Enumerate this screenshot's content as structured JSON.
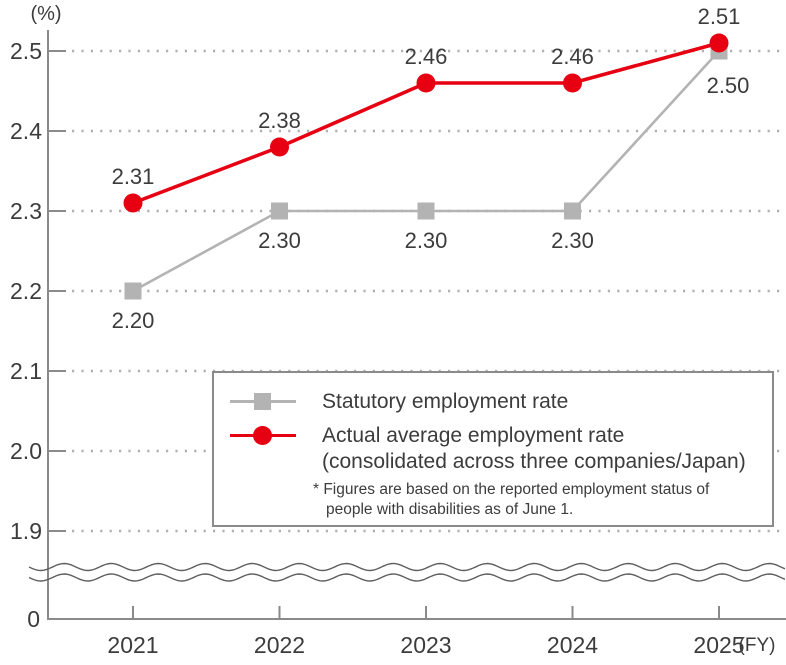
{
  "chart_data": {
    "type": "line",
    "categories": [
      "2021",
      "2022",
      "2023",
      "2024",
      "2025"
    ],
    "x_axis_unit": "(FY)",
    "y_axis_unit": "(%)",
    "series": [
      {
        "name": "Statutory employment rate",
        "marker": "square",
        "color": "#b3b3b3",
        "values": [
          2.2,
          2.3,
          2.3,
          2.3,
          2.5
        ],
        "point_labels": [
          "2.20",
          "2.30",
          "2.30",
          "2.30",
          "2.50"
        ],
        "label_position": "below"
      },
      {
        "name": "Actual average employment rate (consolidated across three companies/Japan)",
        "marker": "circle",
        "color": "#e60012",
        "values": [
          2.31,
          2.38,
          2.46,
          2.46,
          2.51
        ],
        "point_labels": [
          "2.31",
          "2.38",
          "2.46",
          "2.46",
          "2.51"
        ],
        "label_position": "above"
      }
    ],
    "y_tick_labels": [
      "2.5",
      "2.4",
      "2.3",
      "2.2",
      "2.1",
      "2.0",
      "1.9"
    ],
    "y_ticks": [
      2.5,
      2.4,
      2.3,
      2.2,
      2.1,
      2.0,
      1.9
    ],
    "origin_label": "0",
    "axis_break": true,
    "ylim_display": [
      1.9,
      2.5
    ],
    "grid": "dotted-horizontal",
    "legend_position": "inside-lower-right",
    "title": ""
  },
  "legend": {
    "items": [
      {
        "label": "Statutory employment rate",
        "marker": "square",
        "color": "#b3b3b3"
      },
      {
        "label_line1": "Actual average employment rate",
        "label_line2": "(consolidated across three companies/Japan)",
        "marker": "circle",
        "color": "#e60012"
      }
    ],
    "footnote_line1": "* Figures are based on the reported employment status of",
    "footnote_line2": "people with disabilities as of June 1."
  },
  "colors": {
    "statutory_gray": "#b3b3b3",
    "actual_red": "#e60012",
    "text": "#3c3c3c",
    "axis": "#8a8a8a",
    "grid_dots": "#b0b0b0",
    "wave": "#5f5f5f"
  }
}
